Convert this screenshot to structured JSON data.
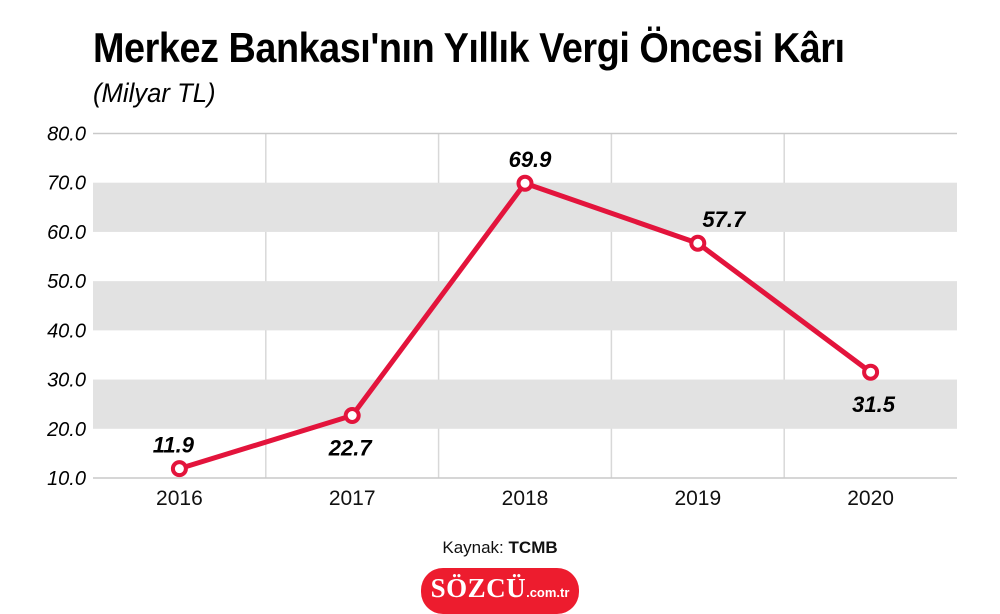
{
  "chart_data": {
    "type": "line",
    "title": "Merkez Bankası'nın Yıllık Vergi Öncesi Kârı",
    "subtitle": "(Milyar TL)",
    "categories": [
      "2016",
      "2017",
      "2018",
      "2019",
      "2020"
    ],
    "values": [
      11.9,
      22.7,
      69.9,
      57.7,
      31.5
    ],
    "point_labels": [
      "11.9",
      "22.7",
      "69.9",
      "57.7",
      "31.5"
    ],
    "point_label_position": [
      "above",
      "below",
      "above",
      "above",
      "below"
    ],
    "point_label_dx": [
      -6,
      -2,
      5,
      26,
      3
    ],
    "yticks": [
      "10.0",
      "20.0",
      "30.0",
      "40.0",
      "50.0",
      "60.0",
      "70.0",
      "80.0"
    ],
    "ylim": [
      10,
      80
    ],
    "xlabel": "",
    "ylabel": "",
    "band_ranges": [
      [
        20,
        30
      ],
      [
        40,
        50
      ],
      [
        60,
        70
      ]
    ],
    "grid": "horizontal-stripes-with-vertical-category-separators",
    "legend": "none",
    "line_color": "#e3143c",
    "marker_fill": "#ffffff",
    "band_color": "#e2e2e2",
    "grid_color": "#d8d8d8",
    "axis_line_color": "#c9c9c9"
  },
  "source": {
    "prefix": "Kaynak:",
    "name": "TCMB"
  },
  "logo": {
    "text": "SÖZCÜ",
    "suffix": ".com.tr",
    "background": "#ed1c2e"
  }
}
